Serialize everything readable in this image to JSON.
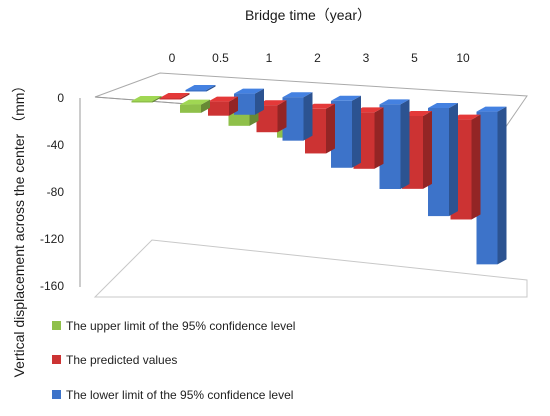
{
  "chart_data": {
    "type": "bar",
    "title": "Bridge time（year）",
    "xlabel": "Bridge time（year）",
    "ylabel": "Vertical displacement across the center （mm）",
    "categories": [
      "0",
      "0.5",
      "1",
      "2",
      "3",
      "5",
      "10"
    ],
    "ylim": [
      -160,
      0
    ],
    "yticks": [
      "0",
      "-40",
      "-80",
      "-120",
      "-160"
    ],
    "ytick_values": [
      0,
      -40,
      -80,
      -120,
      -160
    ],
    "series": [
      {
        "name": "The upper limit of the 95% confidence level",
        "color": "#8fc04a",
        "values": [
          0,
          -7,
          -15,
          -22,
          -30,
          -38,
          -48
        ]
      },
      {
        "name": "The predicted values",
        "color": "#cc3333",
        "values": [
          0,
          -12,
          -23,
          -38,
          -48,
          -62,
          -85
        ]
      },
      {
        "name": "The lower limit of the 95% confidence level",
        "color": "#3d73c9",
        "values": [
          0,
          -18,
          -37,
          -57,
          -72,
          -92,
          -130
        ]
      }
    ],
    "legend_position": "bottom-left",
    "grid": false
  }
}
